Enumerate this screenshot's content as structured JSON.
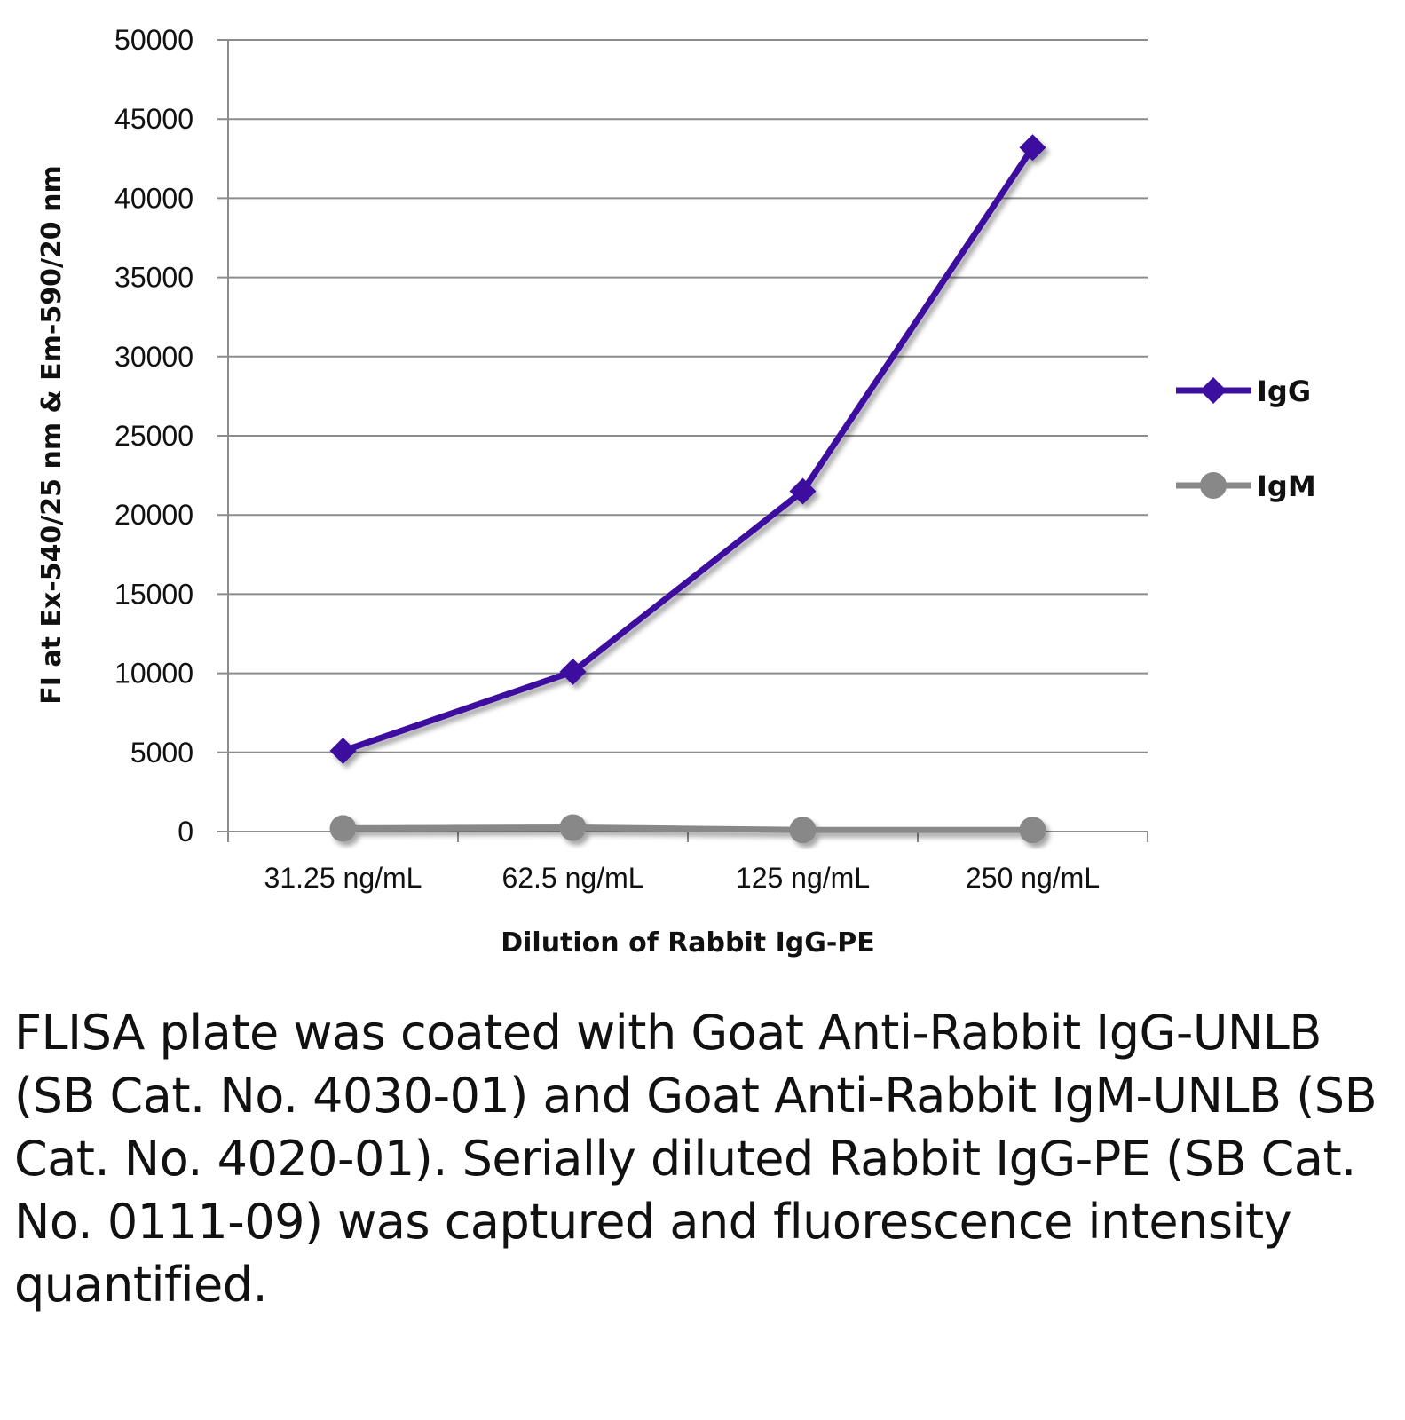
{
  "chart_data": {
    "type": "line",
    "categories": [
      "31.25 ng/mL",
      "62.5 ng/mL",
      "125 ng/mL",
      "250 ng/mL"
    ],
    "series": [
      {
        "name": "IgG",
        "values": [
          5100,
          10100,
          21500,
          43200
        ],
        "color": "#3d0fa0",
        "marker": "diamond"
      },
      {
        "name": "IgM",
        "values": [
          200,
          250,
          100,
          100
        ],
        "color": "#888888",
        "marker": "circle"
      }
    ],
    "xlabel": "Dilution of Rabbit IgG-PE",
    "ylabel": "FI at Ex-540/25 nm & Em-590/20 nm",
    "ylim": [
      0,
      50000
    ],
    "yticks": [
      "0",
      "5000",
      "10000",
      "15000",
      "20000",
      "25000",
      "30000",
      "35000",
      "40000",
      "45000",
      "50000"
    ],
    "grid": true,
    "legend_position": "right"
  },
  "caption": "FLISA plate was coated with Goat Anti-Rabbit IgG-UNLB (SB Cat. No. 4030-01) and Goat Anti-Rabbit IgM-UNLB (SB Cat. No. 4020-01).  Serially diluted Rabbit IgG-PE (SB Cat. No. 0111-09) was captured and fluorescence intensity quantified."
}
